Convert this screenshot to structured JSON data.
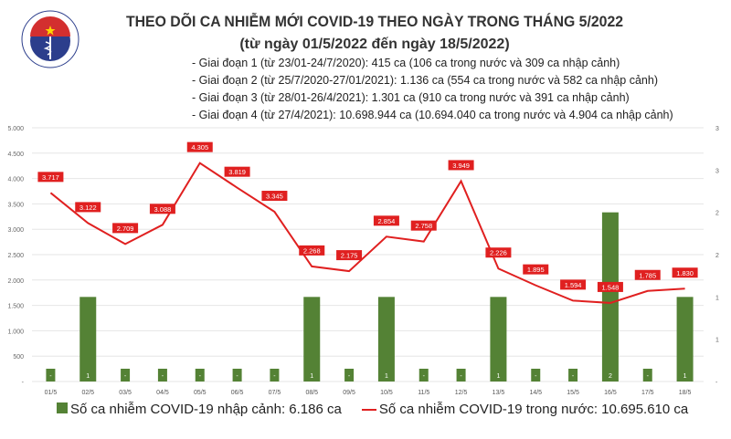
{
  "header": {
    "logo_text": "BỘ Y TẾ — MINISTRY OF HEALTH",
    "title": "THEO DÕI CA NHIỄM MỚI COVID-19 THEO NGÀY TRONG THÁNG 5/2022",
    "subtitle": "(từ ngày 01/5/2022 đến ngày 18/5/2022)",
    "stages": [
      "- Giai đoạn 1 (từ 23/01-24/7/2020): 415 ca (106 ca trong nước và 309 ca nhập cảnh)",
      "- Giai đoạn 2 (từ 25/7/2020-27/01/2021): 1.136 ca (554 ca trong nước và 582 ca nhập cảnh)",
      "- Giai đoạn 3 (từ 28/01-26/4/2021): 1.301 ca (910 ca trong nước và 391 ca nhập cảnh)",
      "- Giai đoạn 4 (từ 27/4/2021): 10.698.944 ca (10.694.040 ca trong nước và 4.904 ca nhập cảnh)"
    ]
  },
  "chart_data": {
    "type": "bar+line",
    "categories": [
      "01/5",
      "02/5",
      "03/5",
      "04/5",
      "05/5",
      "06/5",
      "07/5",
      "08/5",
      "09/5",
      "10/5",
      "11/5",
      "12/5",
      "13/5",
      "14/5",
      "15/5",
      "16/5",
      "17/5",
      "18/5"
    ],
    "series": [
      {
        "name": "Số ca nhiễm COVID-19 nhập cảnh: 6.186 ca",
        "type": "bar",
        "axis": "right",
        "color": "#548235",
        "values": [
          0,
          1,
          0,
          0,
          0,
          0,
          0,
          1,
          0,
          1,
          0,
          0,
          1,
          0,
          0,
          2,
          0,
          1
        ],
        "labels": [
          "-",
          "1",
          "-",
          "-",
          "-",
          "-",
          "-",
          "1",
          "-",
          "1",
          "-",
          "-",
          "1",
          "-",
          "-",
          "2",
          "-",
          "1"
        ]
      },
      {
        "name": "Số ca nhiễm COVID-19 trong nước: 10.695.610 ca",
        "type": "line",
        "axis": "left",
        "color": "#e02020",
        "values": [
          3717,
          3122,
          2709,
          3088,
          4305,
          3819,
          3345,
          2268,
          2175,
          2854,
          2758,
          3949,
          2226,
          1895,
          1594,
          1548,
          1785,
          1830
        ],
        "labels": [
          "3.717",
          "3.122",
          "2.709",
          "3.088",
          "4.305",
          "3.819",
          "3.345",
          "2.268",
          "2.175",
          "2.854",
          "2.758",
          "3.949",
          "2.226",
          "1.895",
          "1.594",
          "1.548",
          "1.785",
          "1.830"
        ]
      }
    ],
    "left_axis": {
      "ylim": [
        0,
        5000
      ],
      "ticks": [
        "-",
        "500",
        "1.000",
        "1.500",
        "2.000",
        "2.500",
        "3.000",
        "3.500",
        "4.000",
        "4.500",
        "5.000"
      ]
    },
    "right_axis": {
      "ylim": [
        0,
        3
      ],
      "ticks": [
        "-",
        "1",
        "1",
        "2",
        "2",
        "3",
        "3"
      ]
    },
    "grid": true,
    "legend": "bottom"
  }
}
